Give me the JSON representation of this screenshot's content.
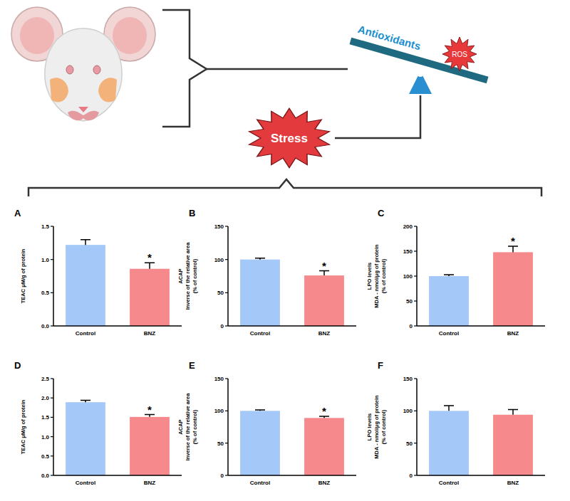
{
  "diagram": {
    "antioxidants": "Antioxidants",
    "ros": "ROS",
    "stress": "Stress"
  },
  "chart_data": [
    {
      "type": "bar",
      "panel": "A",
      "ylabel": [
        "TEAC μM/g of protein"
      ],
      "categories": [
        "Control",
        "BNZ"
      ],
      "values": [
        1.22,
        0.86
      ],
      "errors": [
        0.08,
        0.09
      ],
      "colors": [
        "#a4c8f7",
        "#f5898c"
      ],
      "ylim": [
        0,
        1.5
      ],
      "yticks": [
        {
          "value": 0,
          "label": "0.0"
        },
        {
          "value": 0.5,
          "label": "0.5"
        },
        {
          "value": 1,
          "label": "1.0"
        },
        {
          "value": 1.5,
          "label": "1.5"
        }
      ],
      "annotations": [
        {
          "category": "BNZ",
          "text": "*"
        }
      ]
    },
    {
      "type": "bar",
      "panel": "B",
      "ylabel": [
        "ACAP",
        "Inverse of the relative area",
        "(% of control)"
      ],
      "categories": [
        "Control",
        "BNZ"
      ],
      "values": [
        100,
        76
      ],
      "errors": [
        2,
        7
      ],
      "colors": [
        "#a4c8f7",
        "#f5898c"
      ],
      "ylim": [
        0,
        150
      ],
      "yticks": [
        0,
        50,
        100,
        150
      ],
      "annotations": [
        {
          "category": "BNZ",
          "text": "*"
        }
      ]
    },
    {
      "type": "bar",
      "panel": "C",
      "ylabel": [
        "LPO levels",
        "MDA - nmol/μg of protein",
        "(% of control)"
      ],
      "categories": [
        "Control",
        "BNZ"
      ],
      "values": [
        100,
        148
      ],
      "errors": [
        3,
        12
      ],
      "colors": [
        "#a4c8f7",
        "#f5898c"
      ],
      "ylim": [
        0,
        200
      ],
      "yticks": [
        0,
        50,
        100,
        150,
        200
      ],
      "annotations": [
        {
          "category": "BNZ",
          "text": "*"
        }
      ]
    },
    {
      "type": "bar",
      "panel": "D",
      "ylabel": [
        "TEAC μM/g of protein"
      ],
      "categories": [
        "Control",
        "BNZ"
      ],
      "values": [
        1.89,
        1.51
      ],
      "errors": [
        0.05,
        0.06
      ],
      "colors": [
        "#a4c8f7",
        "#f5898c"
      ],
      "ylim": [
        0,
        2.5
      ],
      "yticks": [
        {
          "value": 0,
          "label": "0.0"
        },
        {
          "value": 0.5,
          "label": "0.5"
        },
        {
          "value": 1,
          "label": "1.0"
        },
        {
          "value": 1.5,
          "label": "1.5"
        },
        {
          "value": 2,
          "label": "2.0"
        },
        {
          "value": 2.5,
          "label": "2.5"
        }
      ],
      "annotations": [
        {
          "category": "BNZ",
          "text": "*"
        }
      ]
    },
    {
      "type": "bar",
      "panel": "E",
      "ylabel": [
        "ACAP",
        "Inverse of the relative area",
        "(% of control)"
      ],
      "categories": [
        "Control",
        "BNZ"
      ],
      "values": [
        100,
        89
      ],
      "errors": [
        1.5,
        2.5
      ],
      "colors": [
        "#a4c8f7",
        "#f5898c"
      ],
      "ylim": [
        0,
        150
      ],
      "yticks": [
        0,
        50,
        100,
        150
      ],
      "annotations": [
        {
          "category": "BNZ",
          "text": "*"
        }
      ]
    },
    {
      "type": "bar",
      "panel": "F",
      "ylabel": [
        "LPO levels",
        "MDA - nmol/μg of protein",
        "(% of control)"
      ],
      "categories": [
        "Control",
        "BNZ"
      ],
      "values": [
        100,
        94
      ],
      "errors": [
        8,
        8
      ],
      "colors": [
        "#a4c8f7",
        "#f5898c"
      ],
      "ylim": [
        0,
        150
      ],
      "yticks": [
        0,
        50,
        100,
        150
      ],
      "annotations": []
    }
  ]
}
